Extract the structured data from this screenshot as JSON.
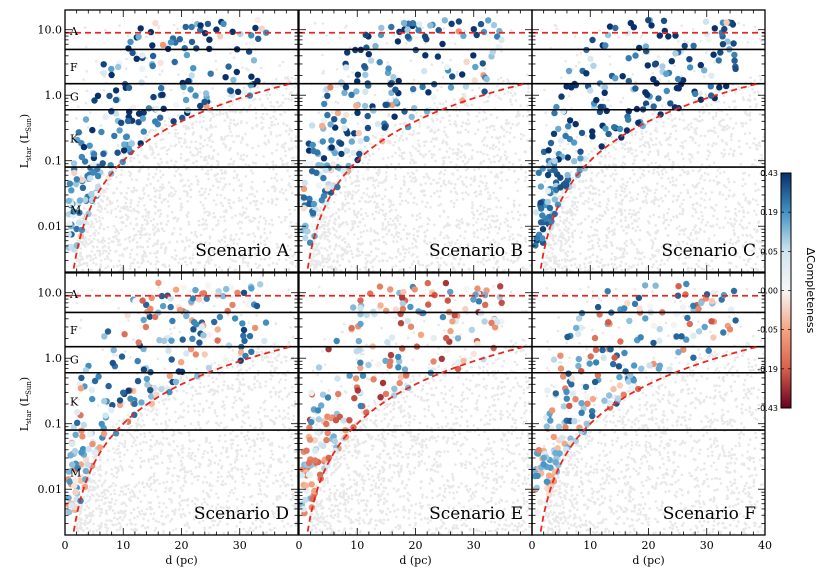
{
  "chart_data": {
    "type": "scatter",
    "title": "",
    "xlabel": "d (pc)",
    "ylabel_main": "L",
    "ylabel_sub1": "star",
    "ylabel_paren_open": "(L",
    "ylabel_sub2": "Sun",
    "ylabel_paren_close": ")",
    "xlim": [
      0,
      40
    ],
    "ylim": [
      0.002,
      20
    ],
    "yscale": "log",
    "x_ticks": [
      0,
      10,
      20,
      30,
      40
    ],
    "x_tick_labels": [
      "0",
      "10",
      "20",
      "30",
      "40"
    ],
    "y_ticks": [
      0.01,
      0.1,
      1.0,
      10.0
    ],
    "y_tick_labels": [
      "0.01",
      "0.1",
      "1.0",
      "10.0"
    ],
    "spectral_boundaries": [
      5.0,
      1.5,
      0.6,
      0.08
    ],
    "spectral_labels": [
      {
        "label": "A",
        "L": 9.5
      },
      {
        "label": "F",
        "L": 2.7
      },
      {
        "label": "G",
        "L": 0.95
      },
      {
        "label": "K",
        "L": 0.22
      },
      {
        "label": "M",
        "L": 0.018
      }
    ],
    "red_line_L": 9.0,
    "red_curve": {
      "formula": "L = 0.001 * d^2",
      "dmin": 1.5,
      "dmax": 39
    },
    "panels": [
      {
        "name": "Scenario A",
        "seed": 11,
        "bias": 0.35
      },
      {
        "name": "Scenario B",
        "seed": 23,
        "bias": 0.3
      },
      {
        "name": "Scenario C",
        "seed": 37,
        "bias": 0.45
      },
      {
        "name": "Scenario D",
        "seed": 41,
        "bias": 0.15
      },
      {
        "name": "Scenario E",
        "seed": 53,
        "bias": -0.05
      },
      {
        "name": "Scenario F",
        "seed": 67,
        "bias": 0.1
      }
    ],
    "colorbar": {
      "label": "ΔCompleteness",
      "ticks": [
        0.43,
        0.19,
        0.05,
        0.0,
        -0.05,
        -0.19,
        -0.43
      ],
      "tick_labels": [
        "0.43",
        "0.19",
        "0.05",
        "0.00",
        "-0.05",
        "-0.19",
        "-0.43"
      ],
      "max_color": "#08306b",
      "mid_color": "#f7f7f7",
      "min_color": "#67001f"
    },
    "colors": {
      "background_points": "#e8e8e8",
      "red_lines": "#e8271e",
      "boundary_lines": "#000000"
    }
  }
}
